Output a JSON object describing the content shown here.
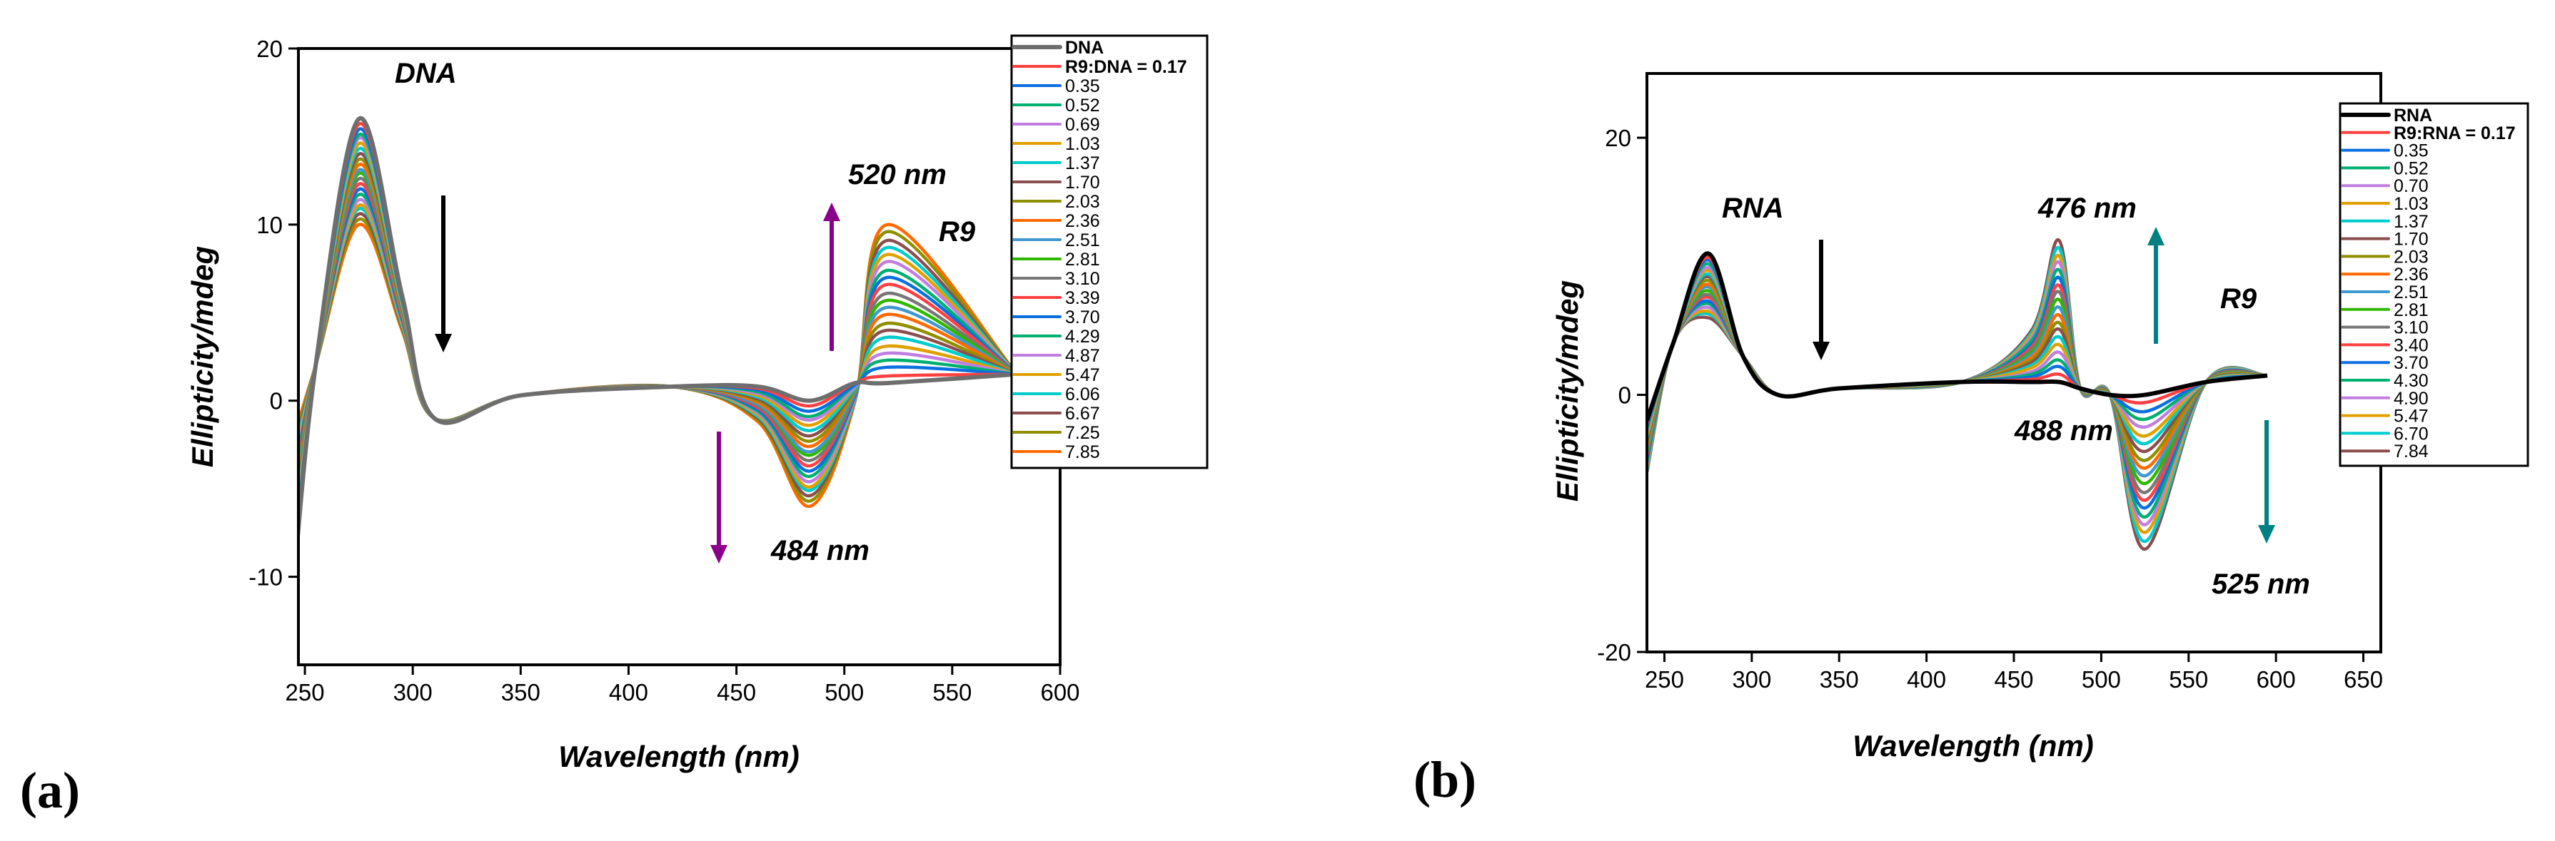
{
  "panel_labels": [
    "(a)",
    "(b)"
  ],
  "chart_data": [
    {
      "type": "line",
      "panel": "(a)",
      "xlabel": "Wavelength (nm)",
      "ylabel": "Ellipticity/mdeg",
      "xlim": [
        247,
        600
      ],
      "ylim": [
        -15,
        20
      ],
      "xticks": [
        250,
        300,
        350,
        400,
        450,
        500,
        550,
        600
      ],
      "yticks": [
        -10,
        0,
        10,
        20
      ],
      "grid": false,
      "legend_position": "top-right",
      "annotations": {
        "species": "DNA",
        "peak_pos": "520 nm",
        "peak_neg": "484 nm",
        "dye": "R9"
      },
      "arrow_colors": {
        "main": "#000000",
        "dye": "#8b008b"
      },
      "legend": [
        "DNA",
        "R9:DNA = 0.17",
        "0.35",
        "0.52",
        "0.69",
        "1.03",
        "1.37",
        "1.70",
        "2.03",
        "2.36",
        "2.51",
        "2.81",
        "3.10",
        "3.39",
        "3.70",
        "4.29",
        "4.87",
        "5.47",
        "6.06",
        "6.67",
        "7.25",
        "7.85"
      ],
      "colors": [
        "#6e6e6e",
        "#ff4040",
        "#0a6fe0",
        "#00b070",
        "#c07ee0",
        "#e0a000",
        "#00cccc",
        "#8b4e4e",
        "#8f8f00",
        "#ff6a00",
        "#4098d0",
        "#30b800",
        "#777777",
        "#ff4040",
        "#0a6fe0",
        "#00b070",
        "#c07ee0",
        "#e0a000",
        "#00cccc",
        "#8b4e4e",
        "#8f8f00",
        "#ff6a00"
      ],
      "x": [
        245,
        255,
        275,
        295,
        310,
        350,
        420,
        460,
        484,
        505,
        520,
        580
      ],
      "y_columns": [
        [
          -10,
          -9.6,
          -9.2,
          -8.9,
          -8.5,
          -8.1,
          -7.7,
          -7.3,
          -7,
          -6.6,
          -6.2,
          -5.8,
          -5.4,
          -5,
          -4.7,
          -4.3,
          -3.9,
          -3.5,
          -3.1,
          -2.8,
          -2.4,
          -2
        ],
        2,
        [
          16,
          15.7,
          15.4,
          15.1,
          14.9,
          14.6,
          14.3,
          14,
          13.7,
          13.4,
          13.1,
          12.9,
          12.6,
          12.3,
          12,
          11.7,
          11.4,
          11.1,
          10.9,
          10.6,
          10.3,
          10
        ],
        [
          6,
          5.9,
          5.8,
          5.7,
          5.6,
          5.5,
          5.4,
          5.3,
          5.2,
          5.1,
          5,
          5,
          4.9,
          4.8,
          4.7,
          4.6,
          4.5,
          4.4,
          4.3,
          4.2,
          4.1,
          4
        ],
        -1,
        0.3,
        0.8,
        [
          0.8,
          0.7,
          0.6,
          0.5,
          0.4,
          0.3,
          0.2,
          0.1,
          0,
          -0.1,
          -0.2,
          -0.2,
          -0.3,
          -0.4,
          -0.5,
          -0.6,
          -0.7,
          -0.8,
          -0.9,
          -1,
          -1.1,
          -1.2
        ],
        [
          0,
          -0.3,
          -0.6,
          -0.9,
          -1.1,
          -1.4,
          -1.7,
          -2,
          -2.3,
          -2.6,
          -2.9,
          -3.1,
          -3.4,
          -3.7,
          -4,
          -4.3,
          -4.6,
          -4.9,
          -5.1,
          -5.4,
          -5.7,
          -6
        ],
        [
          1,
          1,
          0.9,
          0.9,
          0.8,
          0.8,
          0.7,
          0.7,
          0.6,
          0.6,
          0.5,
          0.5,
          0.4,
          0.4,
          0.3,
          0.3,
          0.2,
          0.2,
          0.1,
          0.1,
          0.1,
          0
        ],
        [
          1,
          1.4,
          1.9,
          2.3,
          2.7,
          3.1,
          3.6,
          4,
          4.4,
          4.9,
          5.3,
          5.7,
          6.1,
          6.6,
          7,
          7.4,
          7.9,
          8.3,
          8.7,
          9.1,
          9.6,
          10
        ],
        1.5
      ]
    },
    {
      "type": "line",
      "panel": "(b)",
      "xlabel": "Wavelength (nm)",
      "ylabel": "Ellipticity/mdeg",
      "xlim": [
        240,
        660
      ],
      "ylim": [
        -20,
        25
      ],
      "xticks": [
        250,
        300,
        350,
        400,
        450,
        500,
        550,
        600,
        650
      ],
      "yticks": [
        -20,
        0,
        20
      ],
      "grid": false,
      "legend_position": "right",
      "annotations": {
        "species": "RNA",
        "peak_pos": "476 nm",
        "mid": "488 nm",
        "peak_neg": "525 nm",
        "dye": "R9"
      },
      "arrow_colors": {
        "main": "#000000",
        "dye": "#008080"
      },
      "legend": [
        "RNA",
        "R9:RNA = 0.17",
        "0.35",
        "0.52",
        "0.70",
        "1.03",
        "1.37",
        "1.70",
        "2.03",
        "2.36",
        "2.51",
        "2.81",
        "3.10",
        "3.40",
        "3.70",
        "4.30",
        "4.90",
        "5.47",
        "6.70",
        "7.84"
      ],
      "colors": [
        "#000000",
        "#ff4040",
        "#0a6fe0",
        "#00b070",
        "#c07ee0",
        "#e0a000",
        "#00cccc",
        "#8b4e4e",
        "#8f8f00",
        "#ff6a00",
        "#4098d0",
        "#30b800",
        "#777777",
        "#ff4040",
        "#0a6fe0",
        "#00b070",
        "#c07ee0",
        "#e0a000",
        "#00cccc",
        "#8b4e4e"
      ],
      "x": [
        240,
        255,
        275,
        295,
        315,
        350,
        420,
        460,
        476,
        488,
        505,
        525,
        560,
        595
      ],
      "y_columns": [
        [
          -2,
          -2.2,
          -2.4,
          -2.6,
          -2.8,
          -3.1,
          -3.3,
          -3.5,
          -3.7,
          -3.9,
          -4.1,
          -4.3,
          -4.5,
          -4.7,
          -4.9,
          -5.2,
          -5.4,
          -5.6,
          -5.8,
          -6
        ],
        4,
        [
          11,
          10.7,
          10.5,
          10.2,
          9.9,
          9.7,
          9.4,
          9.2,
          8.9,
          8.6,
          8.4,
          8.1,
          7.8,
          7.6,
          7.3,
          7.1,
          6.8,
          6.5,
          6.3,
          6
        ],
        3,
        0,
        0.5,
        1,
        [
          1,
          1.2,
          1.4,
          1.6,
          1.8,
          2.1,
          2.3,
          2.5,
          2.7,
          2.9,
          3.1,
          3.3,
          3.5,
          3.7,
          3.9,
          4.2,
          4.4,
          4.6,
          4.8,
          5
        ],
        [
          1,
          1.6,
          2.2,
          2.7,
          3.3,
          3.9,
          4.5,
          5.1,
          5.6,
          6.2,
          6.8,
          7.4,
          8,
          8.5,
          9.1,
          9.7,
          10.3,
          10.8,
          11.4,
          12
        ],
        0.5,
        0,
        [
          0,
          -0.6,
          -1.3,
          -1.9,
          -2.5,
          -3.2,
          -3.8,
          -4.4,
          -5.1,
          -5.7,
          -6.3,
          -6.9,
          -7.6,
          -8.2,
          -8.8,
          -9.5,
          -10.1,
          -10.7,
          -11.4,
          -12
        ],
        1,
        1.5
      ]
    }
  ]
}
